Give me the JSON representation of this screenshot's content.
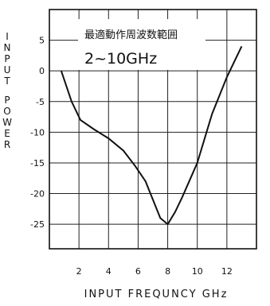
{
  "chart_data": {
    "type": "line",
    "xlabel": "INPUT FREQUNCY GHz",
    "ylabel": "INPUT POWER",
    "xlim": [
      0,
      14
    ],
    "ylim": [
      -29,
      10
    ],
    "x_ticks": [
      2,
      4,
      6,
      8,
      10,
      12
    ],
    "y_ticks": [
      5,
      0,
      -5,
      -10,
      -15,
      -20,
      -25
    ],
    "grid": true,
    "annotations": [
      "最適動作周波数範囲",
      "2~10GHz"
    ],
    "series": [
      {
        "x": [
          0.8,
          1.5,
          2.1,
          3.0,
          4.0,
          5.0,
          5.8,
          6.5,
          7.0,
          7.5,
          8.0,
          8.5,
          9.0,
          10.0,
          11.0,
          12.0,
          13.0
        ],
        "values": [
          0,
          -5,
          -8,
          -9.5,
          -11,
          -13,
          -15.5,
          -18,
          -21,
          -24,
          -25,
          -23,
          -20.5,
          -15,
          -7,
          -1,
          4
        ]
      }
    ]
  }
}
